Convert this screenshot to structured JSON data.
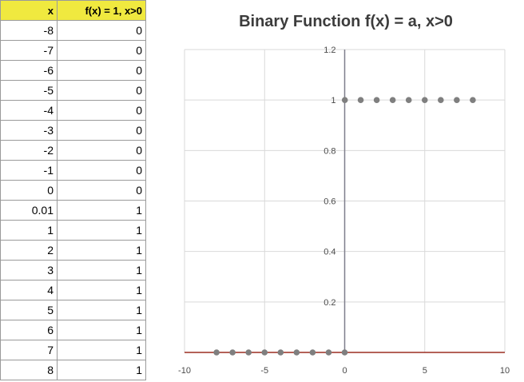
{
  "table": {
    "headers": [
      "x",
      "f(x) = 1, x>0"
    ],
    "rows": [
      [
        "-8",
        "0"
      ],
      [
        "-7",
        "0"
      ],
      [
        "-6",
        "0"
      ],
      [
        "-5",
        "0"
      ],
      [
        "-4",
        "0"
      ],
      [
        "-3",
        "0"
      ],
      [
        "-2",
        "0"
      ],
      [
        "-1",
        "0"
      ],
      [
        "0",
        "0"
      ],
      [
        "0.01",
        "1"
      ],
      [
        "1",
        "1"
      ],
      [
        "2",
        "1"
      ],
      [
        "3",
        "1"
      ],
      [
        "4",
        "1"
      ],
      [
        "5",
        "1"
      ],
      [
        "6",
        "1"
      ],
      [
        "7",
        "1"
      ],
      [
        "8",
        "1"
      ]
    ]
  },
  "colors": {
    "header_fill": "#f0e93f",
    "series": "#7f7f7f",
    "x_axis": "#9b2d20",
    "y_axis": "#7f7f8c",
    "grid": "#d9d9d9"
  },
  "chart_data": {
    "type": "scatter",
    "title": "Binary Function f(x) = a, x>0",
    "xlabel": "",
    "ylabel": "",
    "xlim": [
      -10,
      10
    ],
    "ylim": [
      0,
      1.2
    ],
    "xticks": [
      -10,
      -5,
      0,
      5,
      10
    ],
    "yticks": [
      0.2,
      0.4,
      0.6,
      0.8,
      1,
      1.2
    ],
    "xtick_labels": [
      "-10",
      "-5",
      "0",
      "5",
      "10"
    ],
    "ytick_labels": [
      "0.2",
      "0.4",
      "0.6",
      "0.8",
      "1",
      "1.2"
    ],
    "grid": true,
    "x": [
      -8,
      -7,
      -6,
      -5,
      -4,
      -3,
      -2,
      -1,
      0,
      0.01,
      1,
      2,
      3,
      4,
      5,
      6,
      7,
      8
    ],
    "y": [
      0,
      0,
      0,
      0,
      0,
      0,
      0,
      0,
      0,
      1,
      1,
      1,
      1,
      1,
      1,
      1,
      1,
      1
    ]
  }
}
